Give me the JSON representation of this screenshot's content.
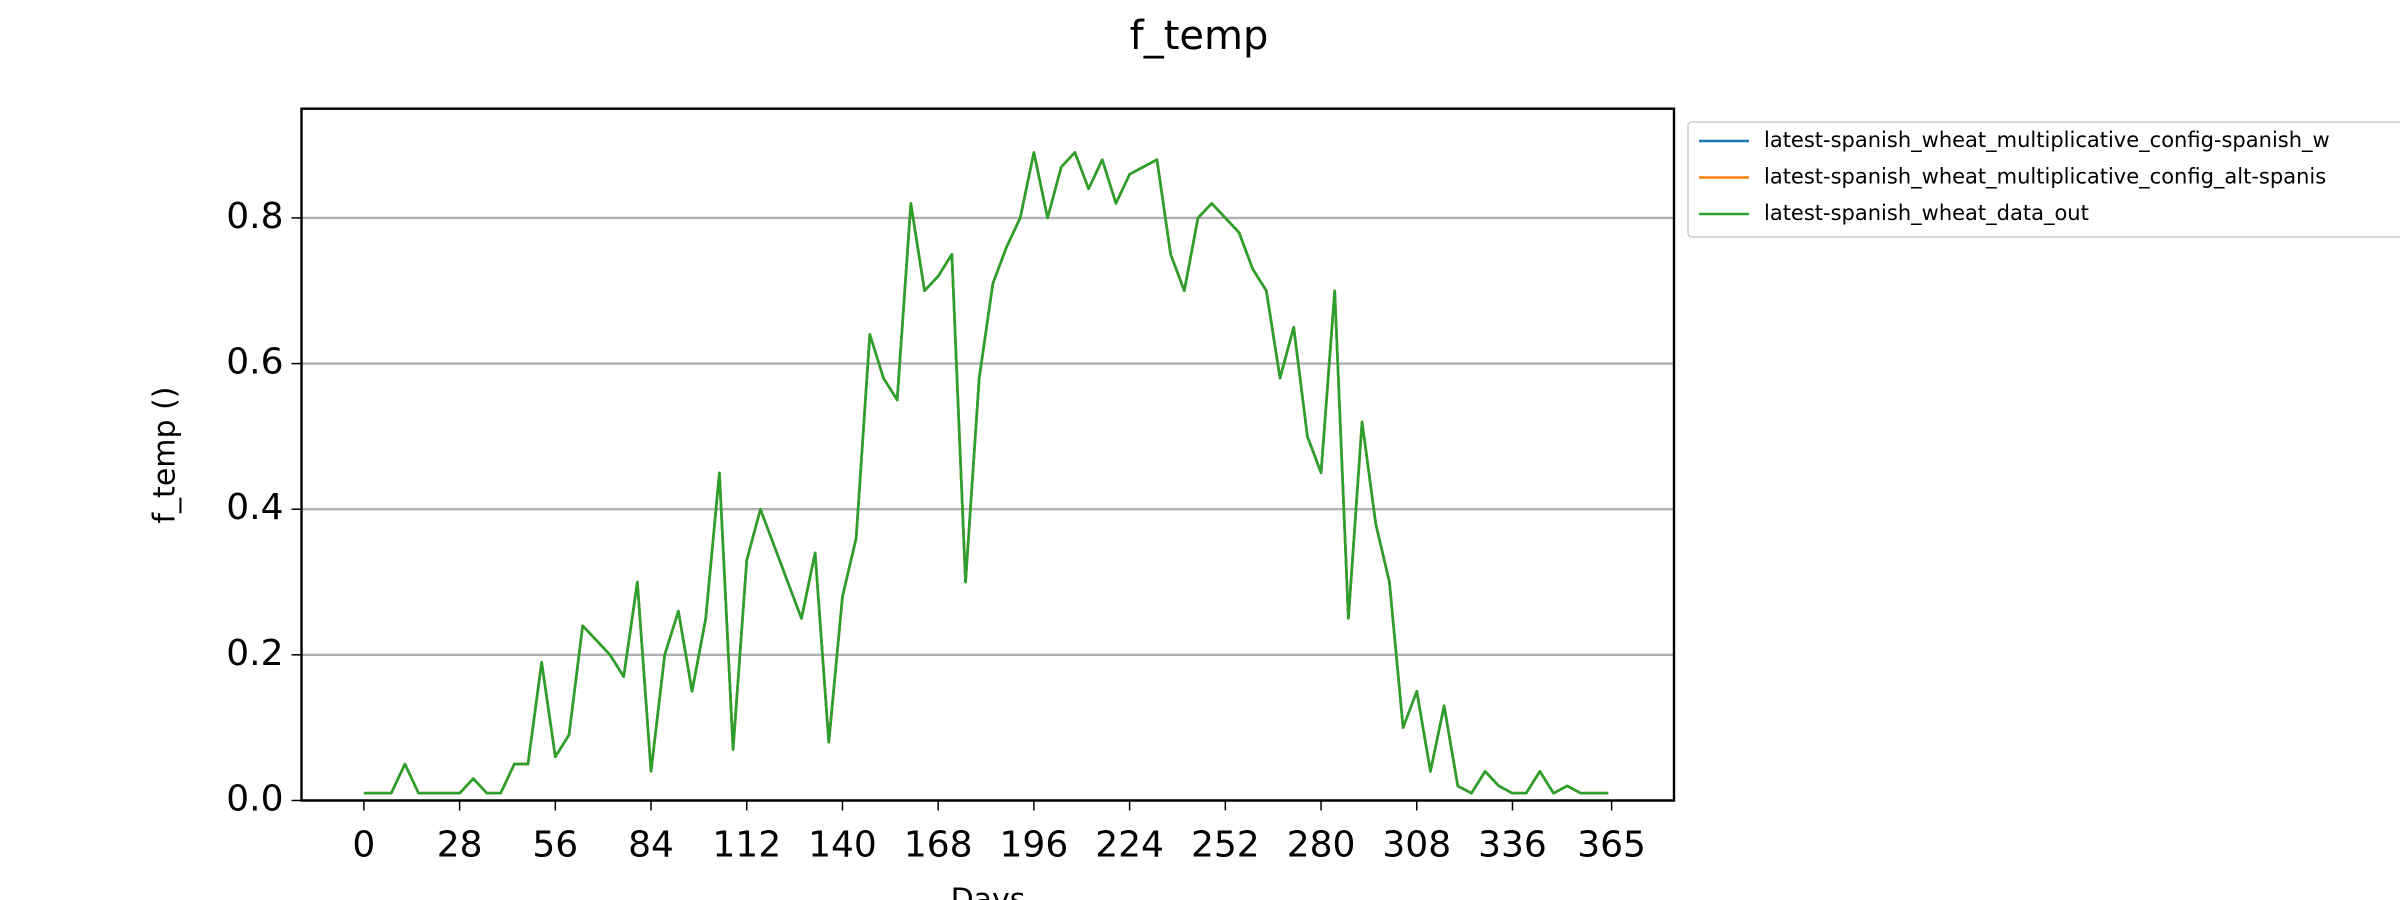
{
  "chart_data": {
    "type": "line",
    "title": "f_temp",
    "xlabel": "Days",
    "ylabel": "f_temp ()",
    "x": [
      0,
      4,
      8,
      12,
      16,
      20,
      24,
      28,
      32,
      36,
      40,
      44,
      48,
      52,
      56,
      60,
      64,
      68,
      72,
      76,
      80,
      84,
      88,
      92,
      96,
      100,
      104,
      108,
      112,
      116,
      120,
      124,
      128,
      132,
      136,
      140,
      144,
      148,
      152,
      156,
      160,
      164,
      168,
      172,
      176,
      180,
      184,
      188,
      192,
      196,
      200,
      204,
      208,
      212,
      216,
      220,
      224,
      228,
      232,
      236,
      240,
      244,
      248,
      252,
      256,
      260,
      264,
      268,
      272,
      276,
      280,
      284,
      288,
      292,
      296,
      300,
      304,
      308,
      312,
      316,
      320,
      324,
      328,
      332,
      336,
      340,
      344,
      348,
      352,
      356,
      360,
      364
    ],
    "series": [
      {
        "name": "latest-spanish_wheat_multiplicative_config-spanish_w",
        "color": "#1f77b4",
        "values": [
          0.01,
          0.01,
          0.01,
          0.05,
          0.01,
          0.01,
          0.01,
          0.01,
          0.03,
          0.01,
          0.01,
          0.05,
          0.05,
          0.19,
          0.06,
          0.09,
          0.24,
          0.22,
          0.2,
          0.17,
          0.3,
          0.04,
          0.2,
          0.26,
          0.15,
          0.25,
          0.45,
          0.07,
          0.33,
          0.4,
          0.35,
          0.3,
          0.25,
          0.34,
          0.08,
          0.28,
          0.36,
          0.64,
          0.58,
          0.55,
          0.82,
          0.7,
          0.72,
          0.75,
          0.3,
          0.58,
          0.71,
          0.76,
          0.8,
          0.89,
          0.8,
          0.87,
          0.89,
          0.84,
          0.88,
          0.82,
          0.86,
          0.87,
          0.88,
          0.75,
          0.7,
          0.8,
          0.82,
          0.8,
          0.78,
          0.73,
          0.7,
          0.58,
          0.65,
          0.5,
          0.45,
          0.7,
          0.25,
          0.52,
          0.38,
          0.3,
          0.1,
          0.15,
          0.04,
          0.13,
          0.02,
          0.01,
          0.04,
          0.02,
          0.01,
          0.01,
          0.04,
          0.01,
          0.02,
          0.01,
          0.01,
          0.01
        ]
      },
      {
        "name": "latest-spanish_wheat_multiplicative_config_alt-spanis",
        "color": "#ff7f0e",
        "values": [
          0.01,
          0.01,
          0.01,
          0.05,
          0.01,
          0.01,
          0.01,
          0.01,
          0.03,
          0.01,
          0.01,
          0.05,
          0.05,
          0.19,
          0.06,
          0.09,
          0.24,
          0.22,
          0.2,
          0.17,
          0.3,
          0.04,
          0.2,
          0.26,
          0.15,
          0.25,
          0.45,
          0.07,
          0.33,
          0.4,
          0.35,
          0.3,
          0.25,
          0.34,
          0.08,
          0.28,
          0.36,
          0.64,
          0.58,
          0.55,
          0.82,
          0.7,
          0.72,
          0.75,
          0.3,
          0.58,
          0.71,
          0.76,
          0.8,
          0.89,
          0.8,
          0.87,
          0.89,
          0.84,
          0.88,
          0.82,
          0.86,
          0.87,
          0.88,
          0.75,
          0.7,
          0.8,
          0.82,
          0.8,
          0.78,
          0.73,
          0.7,
          0.58,
          0.65,
          0.5,
          0.45,
          0.7,
          0.25,
          0.52,
          0.38,
          0.3,
          0.1,
          0.15,
          0.04,
          0.13,
          0.02,
          0.01,
          0.04,
          0.02,
          0.01,
          0.01,
          0.04,
          0.01,
          0.02,
          0.01,
          0.01,
          0.01
        ]
      },
      {
        "name": "latest-spanish_wheat_data_out",
        "color": "#2ca02c",
        "values": [
          0.01,
          0.01,
          0.01,
          0.05,
          0.01,
          0.01,
          0.01,
          0.01,
          0.03,
          0.01,
          0.01,
          0.05,
          0.05,
          0.19,
          0.06,
          0.09,
          0.24,
          0.22,
          0.2,
          0.17,
          0.3,
          0.04,
          0.2,
          0.26,
          0.15,
          0.25,
          0.45,
          0.07,
          0.33,
          0.4,
          0.35,
          0.3,
          0.25,
          0.34,
          0.08,
          0.28,
          0.36,
          0.64,
          0.58,
          0.55,
          0.82,
          0.7,
          0.72,
          0.75,
          0.3,
          0.58,
          0.71,
          0.76,
          0.8,
          0.89,
          0.8,
          0.87,
          0.89,
          0.84,
          0.88,
          0.82,
          0.86,
          0.87,
          0.88,
          0.75,
          0.7,
          0.8,
          0.82,
          0.8,
          0.78,
          0.73,
          0.7,
          0.58,
          0.65,
          0.5,
          0.45,
          0.7,
          0.25,
          0.52,
          0.38,
          0.3,
          0.1,
          0.15,
          0.04,
          0.13,
          0.02,
          0.01,
          0.04,
          0.02,
          0.01,
          0.01,
          0.04,
          0.01,
          0.02,
          0.01,
          0.01,
          0.01
        ]
      }
    ],
    "xlim": [
      -18.25,
      383.25
    ],
    "xticks": [
      0,
      28,
      56,
      84,
      112,
      140,
      168,
      196,
      224,
      252,
      280,
      308,
      336,
      365
    ],
    "ylim": [
      0,
      0.95
    ],
    "yticks": [
      {
        "value": 0,
        "label": "0.0"
      },
      0.2,
      0.4,
      0.6,
      0.8
    ],
    "grid": true,
    "legend": "outside-right"
  }
}
